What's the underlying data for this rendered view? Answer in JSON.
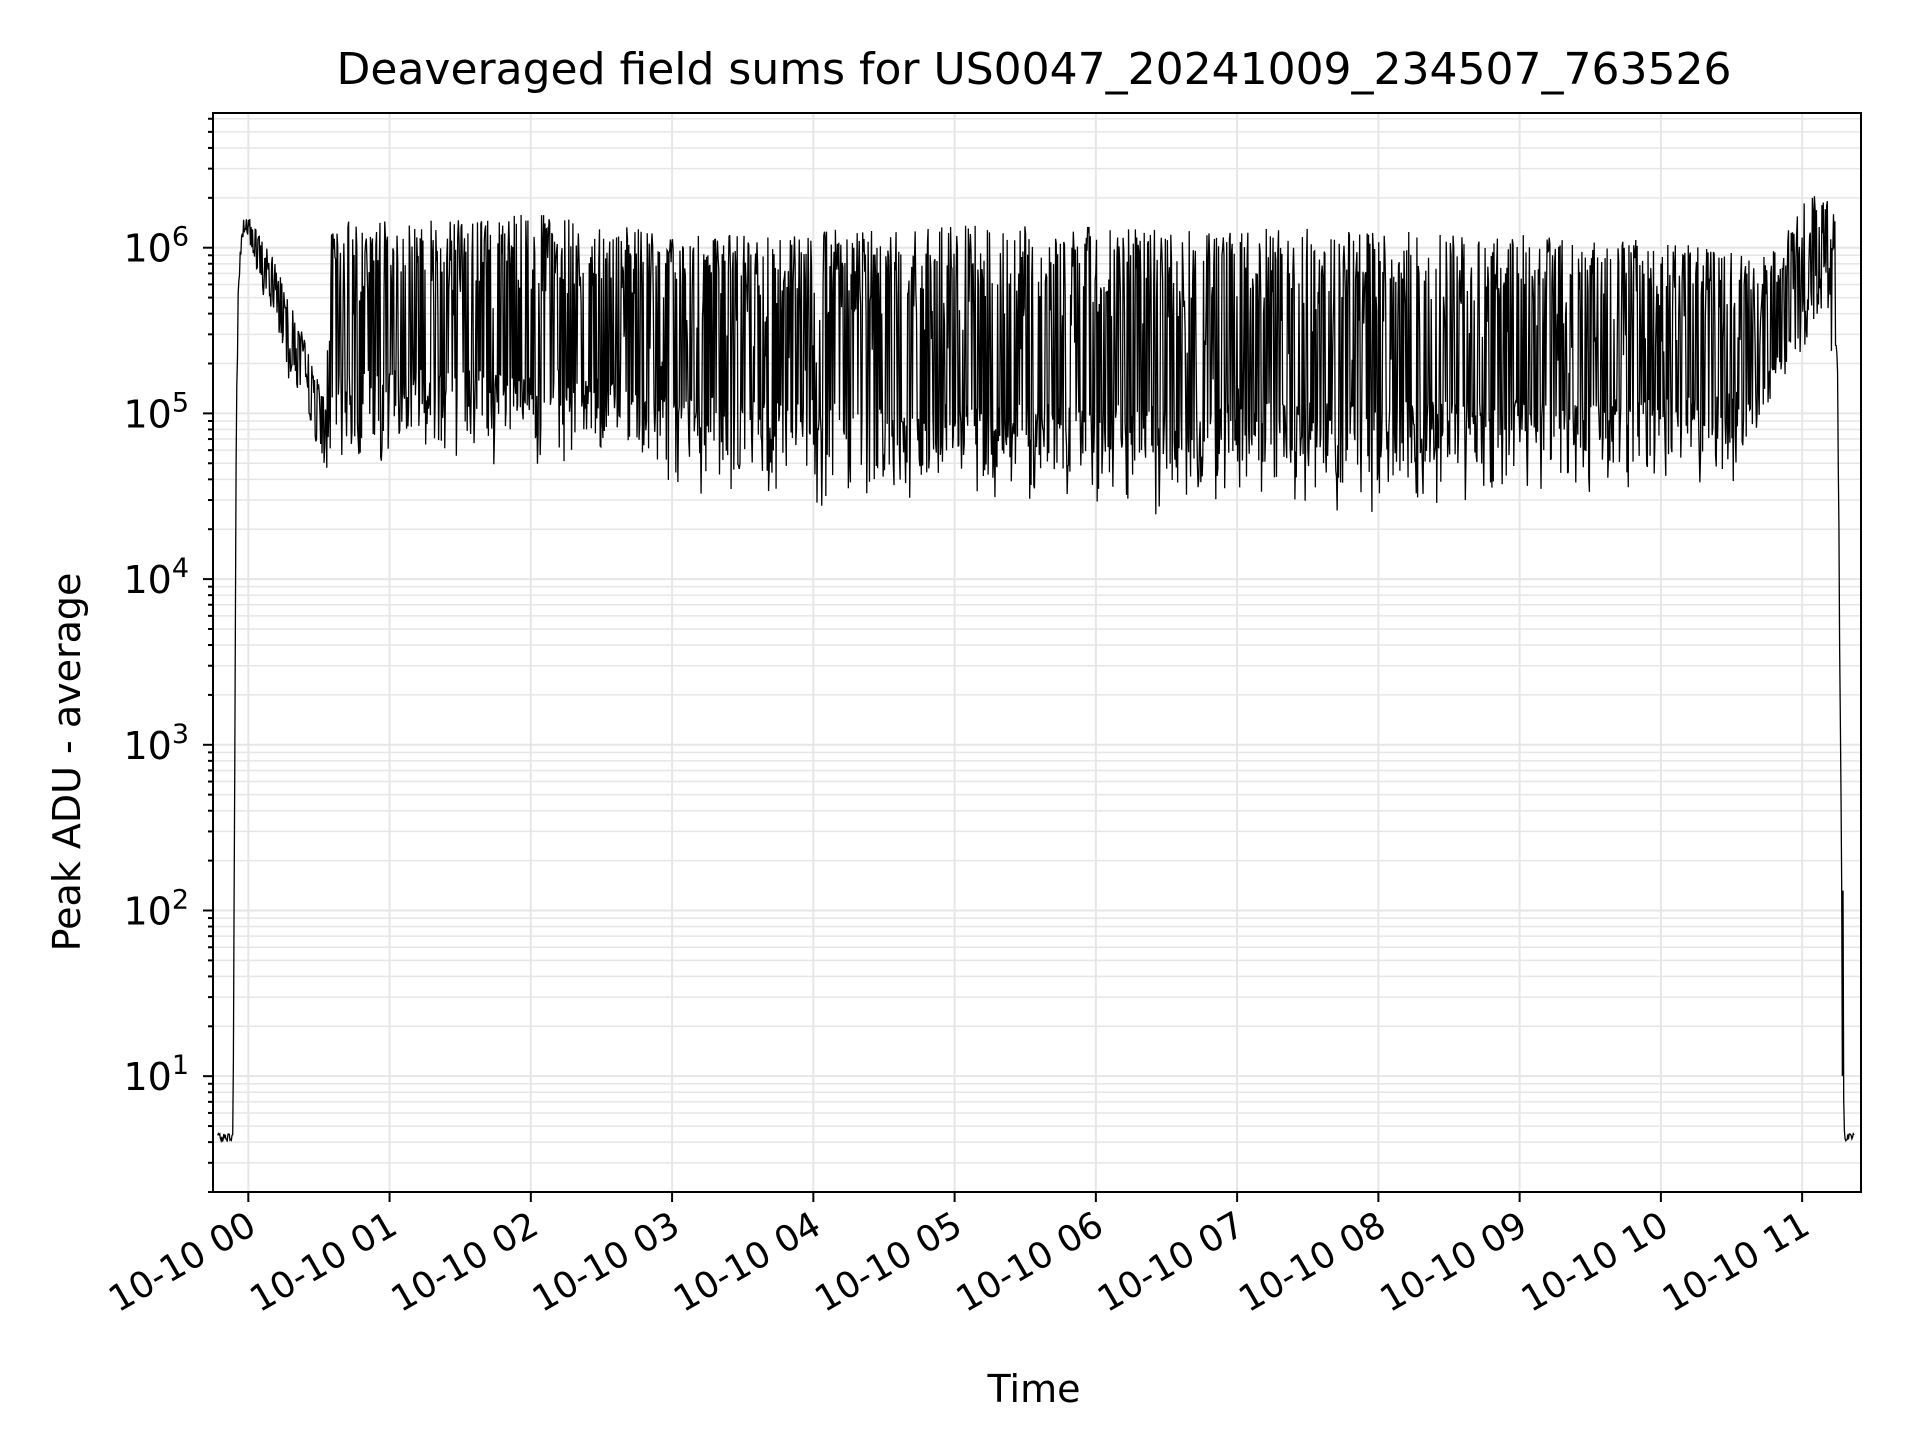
{
  "chart_data": {
    "type": "line",
    "title": "Deaveraged field sums for US0047_20241009_234507_763526",
    "xlabel": "Time",
    "ylabel": "Peak ADU - average",
    "y_scale": "log",
    "ylim": [
      2,
      6500000
    ],
    "xlim": [
      "2024-10-09 23:45:00",
      "2024-10-10 11:25:00"
    ],
    "grid": true,
    "line_color": "#000000",
    "x_ticks": [
      {
        "value": "2024-10-10 00:00",
        "label": "10-10 00"
      },
      {
        "value": "2024-10-10 01:00",
        "label": "10-10 01"
      },
      {
        "value": "2024-10-10 02:00",
        "label": "10-10 02"
      },
      {
        "value": "2024-10-10 03:00",
        "label": "10-10 03"
      },
      {
        "value": "2024-10-10 04:00",
        "label": "10-10 04"
      },
      {
        "value": "2024-10-10 05:00",
        "label": "10-10 05"
      },
      {
        "value": "2024-10-10 06:00",
        "label": "10-10 06"
      },
      {
        "value": "2024-10-10 07:00",
        "label": "10-10 07"
      },
      {
        "value": "2024-10-10 08:00",
        "label": "10-10 08"
      },
      {
        "value": "2024-10-10 09:00",
        "label": "10-10 09"
      },
      {
        "value": "2024-10-10 10:00",
        "label": "10-10 10"
      },
      {
        "value": "2024-10-10 11:00",
        "label": "10-10 11"
      }
    ],
    "y_ticks": [
      {
        "value": 10,
        "base": "10",
        "exp": "1"
      },
      {
        "value": 100,
        "base": "10",
        "exp": "2"
      },
      {
        "value": 1000,
        "base": "10",
        "exp": "3"
      },
      {
        "value": 10000,
        "base": "10",
        "exp": "4"
      },
      {
        "value": 100000,
        "base": "10",
        "exp": "5"
      },
      {
        "value": 1000000,
        "base": "10",
        "exp": "6"
      }
    ],
    "series": [
      {
        "x": [
          "2024-10-09 23:47:00",
          "2024-10-09 23:52:00",
          "2024-10-09 23:53:30",
          "2024-10-09 23:55:00",
          "2024-10-09 23:56:00",
          "2024-10-09 23:58:00",
          "2024-10-10 00:00:00",
          "2024-10-10 00:03:00",
          "2024-10-10 00:06:00",
          "2024-10-10 00:10:00",
          "2024-10-10 00:15:00",
          "2024-10-10 00:20:00",
          "2024-10-10 00:25:00",
          "2024-10-10 00:30:00",
          "2024-10-10 00:33:00",
          "2024-10-10 00:35:00",
          "2024-10-10 00:40:00",
          "2024-10-10 00:50:00",
          "2024-10-10 01:00:00",
          "2024-10-10 01:10:00",
          "2024-10-10 01:20:00",
          "2024-10-10 01:30:00",
          "2024-10-10 01:40:00",
          "2024-10-10 01:50:00",
          "2024-10-10 02:00:00",
          "2024-10-10 02:15:00",
          "2024-10-10 02:30:00",
          "2024-10-10 02:45:00",
          "2024-10-10 03:00:00",
          "2024-10-10 03:30:00",
          "2024-10-10 04:00:00",
          "2024-10-10 04:30:00",
          "2024-10-10 05:00:00",
          "2024-10-10 05:30:00",
          "2024-10-10 06:00:00",
          "2024-10-10 06:30:00",
          "2024-10-10 07:00:00",
          "2024-10-10 07:30:00",
          "2024-10-10 08:00:00",
          "2024-10-10 08:30:00",
          "2024-10-10 09:00:00",
          "2024-10-10 09:30:00",
          "2024-10-10 10:00:00",
          "2024-10-10 10:20:00",
          "2024-10-10 10:40:00",
          "2024-10-10 10:50:00",
          "2024-10-10 11:00:00",
          "2024-10-10 11:05:00",
          "2024-10-10 11:10:00",
          "2024-10-10 11:15:00",
          "2024-10-10 11:17:00",
          "2024-10-10 11:18:00",
          "2024-10-10 11:22:00"
        ],
        "low": [
          4,
          4,
          4,
          100000,
          600000,
          1200000,
          1100000,
          700000,
          500000,
          350000,
          200000,
          120000,
          80000,
          50000,
          45000,
          40000,
          42000,
          45000,
          45000,
          48000,
          50000,
          52000,
          45000,
          40000,
          42000,
          45000,
          40000,
          32000,
          30000,
          28000,
          25000,
          23000,
          22000,
          22000,
          22000,
          23000,
          23000,
          24000,
          25000,
          26000,
          27000,
          28000,
          30000,
          33000,
          40000,
          100000,
          200000,
          300000,
          500000,
          100000,
          10,
          4,
          4
        ],
        "high": [
          4.5,
          4.5,
          4.5,
          200000,
          900000,
          1500000,
          1600000,
          1300000,
          1100000,
          900000,
          700000,
          400000,
          250000,
          150000,
          120000,
          1200000,
          1500000,
          1500000,
          1450000,
          1500000,
          1500000,
          1550000,
          1550000,
          1550000,
          1600000,
          1550000,
          1400000,
          1300000,
          1200000,
          1200000,
          1300000,
          1350000,
          1350000,
          1400000,
          1350000,
          1300000,
          1300000,
          1300000,
          1250000,
          1250000,
          1200000,
          1150000,
          1100000,
          1000000,
          900000,
          1000000,
          1800000,
          2200000,
          2000000,
          1500000,
          1000,
          4.5,
          4.5
        ]
      }
    ]
  }
}
